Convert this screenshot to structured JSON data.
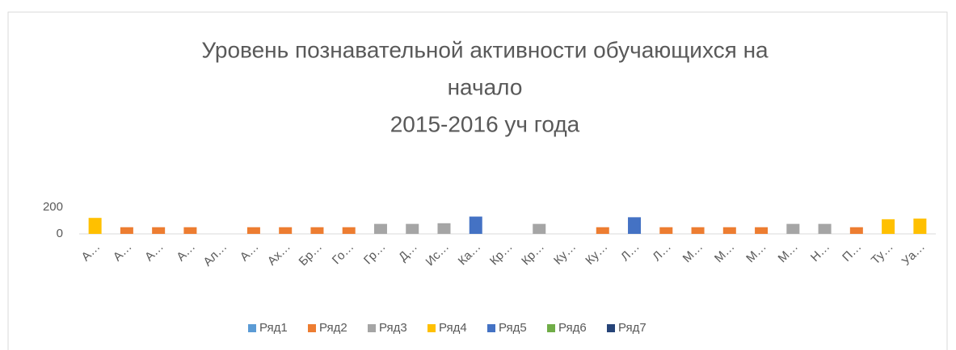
{
  "chart_data": {
    "type": "bar",
    "title": [
      "Уровень познавательной активности обучающихся на",
      "начало",
      "2015-2016 уч года"
    ],
    "categories": [
      "А…",
      "А…",
      "А…",
      "А…",
      "Ал…",
      "А…",
      "Ах…",
      "Бр…",
      "Го…",
      "Гр…",
      "Д…",
      "Ис…",
      "Ка…",
      "Кр…",
      "Кр…",
      "Ку…",
      "Ку…",
      "Л…",
      "Л…",
      "М…",
      "М…",
      "М…",
      "М…",
      "Н…",
      "П…",
      "Ту…",
      "Уа…"
    ],
    "series": [
      {
        "name": "Ряд1",
        "color": "#5b9bd5",
        "values": [
          null,
          null,
          null,
          null,
          null,
          null,
          null,
          null,
          null,
          null,
          null,
          null,
          null,
          null,
          null,
          null,
          null,
          null,
          null,
          null,
          null,
          null,
          null,
          null,
          null,
          null,
          null
        ]
      },
      {
        "name": "Ряд2",
        "color": "#ed7d31",
        "values": [
          null,
          50,
          50,
          50,
          null,
          50,
          50,
          50,
          50,
          null,
          null,
          null,
          null,
          null,
          null,
          null,
          50,
          null,
          50,
          50,
          50,
          50,
          null,
          null,
          50,
          null,
          null
        ]
      },
      {
        "name": "Ряд3",
        "color": "#a5a5a5",
        "values": [
          null,
          null,
          null,
          null,
          null,
          null,
          null,
          null,
          null,
          75,
          75,
          80,
          null,
          null,
          75,
          null,
          null,
          null,
          null,
          null,
          null,
          null,
          75,
          75,
          null,
          null,
          null
        ]
      },
      {
        "name": "Ряд4",
        "color": "#ffc000",
        "values": [
          120,
          null,
          null,
          null,
          null,
          null,
          null,
          null,
          null,
          null,
          null,
          null,
          null,
          null,
          null,
          null,
          null,
          null,
          null,
          null,
          null,
          null,
          null,
          null,
          null,
          110,
          115
        ]
      },
      {
        "name": "Ряд5",
        "color": "#4472c4",
        "values": [
          null,
          null,
          null,
          null,
          null,
          null,
          null,
          null,
          null,
          null,
          null,
          null,
          130,
          null,
          null,
          null,
          null,
          125,
          null,
          null,
          null,
          null,
          null,
          null,
          null,
          null,
          null
        ]
      },
      {
        "name": "Ряд6",
        "color": "#70ad47",
        "values": [
          null,
          null,
          null,
          null,
          null,
          null,
          null,
          null,
          null,
          null,
          null,
          null,
          null,
          null,
          null,
          null,
          null,
          null,
          null,
          null,
          null,
          null,
          null,
          null,
          null,
          null,
          null
        ]
      },
      {
        "name": "Ряд7",
        "color": "#264478",
        "values": [
          null,
          null,
          null,
          null,
          null,
          null,
          null,
          null,
          null,
          null,
          null,
          null,
          null,
          null,
          null,
          null,
          null,
          null,
          null,
          null,
          null,
          null,
          null,
          null,
          null,
          null,
          null
        ]
      }
    ],
    "ylim": [
      0,
      200
    ],
    "yticks": [
      0,
      200
    ],
    "legend": "bottom"
  }
}
